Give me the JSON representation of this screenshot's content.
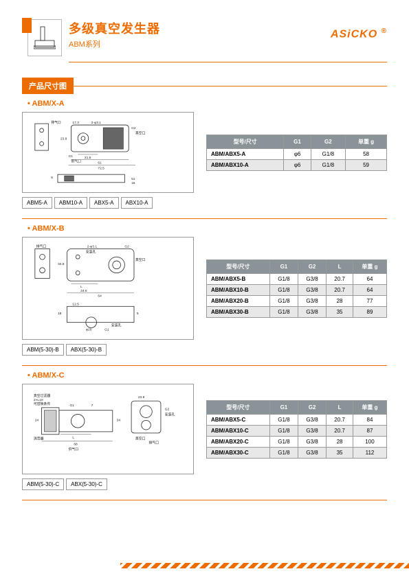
{
  "header": {
    "title": "多级真空发生器",
    "subtitle": "ABM系列",
    "brand": "ASiCKO",
    "brand_mark": "®"
  },
  "section_label": "产品尺寸图",
  "colors": {
    "accent": "#ec6c00",
    "th_bg": "#8a9398",
    "th_fg": "#ffffff",
    "border": "#999999",
    "alt_row": "#e8e8e8"
  },
  "sections": [
    {
      "id": "a",
      "title": "ABM/X-A",
      "tabs": [
        "ABM5-A",
        "ABM10-A",
        "ABX5-A",
        "ABX10-A"
      ],
      "table": {
        "columns": [
          "型号/尺寸",
          "G1",
          "G2",
          "单重 g"
        ],
        "rows": [
          [
            "ABM/ABX5-A",
            "φ6",
            "G1/8",
            "58"
          ],
          [
            "ABM/ABX10-A",
            "φ6",
            "G1/8",
            "59"
          ]
        ]
      }
    },
    {
      "id": "b",
      "title": "ABM/X-B",
      "tabs": [
        "ABM(5-30)-B",
        "ABX(5-30)-B"
      ],
      "table": {
        "columns": [
          "型号/尺寸",
          "G1",
          "G2",
          "L",
          "单重 g"
        ],
        "rows": [
          [
            "ABM/ABX5-B",
            "G1/8",
            "G3/8",
            "20.7",
            "64"
          ],
          [
            "ABM/ABX10-B",
            "G1/8",
            "G3/8",
            "20.7",
            "64"
          ],
          [
            "ABM/ABX20-B",
            "G1/8",
            "G3/8",
            "28",
            "77"
          ],
          [
            "ABM/ABX30-B",
            "G1/8",
            "G3/8",
            "35",
            "89"
          ]
        ]
      }
    },
    {
      "id": "c",
      "title": "ABM/X-C",
      "tabs": [
        "ABM(5-30)-C",
        "ABX(5-30)-C"
      ],
      "table": {
        "columns": [
          "型号/尺寸",
          "G1",
          "G2",
          "L",
          "单重 g"
        ],
        "rows": [
          [
            "ABM/ABX5-C",
            "G1/8",
            "G3/8",
            "20.7",
            "84"
          ],
          [
            "ABM/ABX10-C",
            "G1/8",
            "G3/8",
            "20.7",
            "87"
          ],
          [
            "ABM/ABX20-C",
            "G1/8",
            "G3/8",
            "28",
            "100"
          ],
          [
            "ABM/ABX30-C",
            "G1/8",
            "G3/8",
            "35",
            "112"
          ]
        ]
      }
    }
  ],
  "diagrams": {
    "a": {
      "labels": {
        "exhaust": "排气口",
        "vacuum": "真空口",
        "supply": "供气口"
      },
      "dims": [
        "17.3",
        "2-φ3.1",
        "G2",
        "23.8",
        "G1",
        "21.5",
        "61",
        "72.5",
        "51",
        "16",
        "5"
      ]
    },
    "b": {
      "labels": {
        "exhaust": "排气口",
        "vacuum": "真空口",
        "mount": "安装孔"
      },
      "dims": [
        "2-φ3.1",
        "G2",
        "33.8",
        "L",
        "24.6",
        "64",
        "12.5",
        "18",
        "5",
        "φ20",
        "G1"
      ]
    },
    "c": {
      "labels": {
        "filter": "真空过滤器",
        "muffler": "消音器",
        "supply": "供气口",
        "vacuum": "真空口",
        "mount": "安装孔",
        "exhaust": "排气口"
      },
      "dims": [
        "2×L10",
        "可替换条件",
        "G1",
        "7",
        "24",
        "34",
        "L",
        "68",
        "23.8",
        "G2"
      ]
    }
  }
}
